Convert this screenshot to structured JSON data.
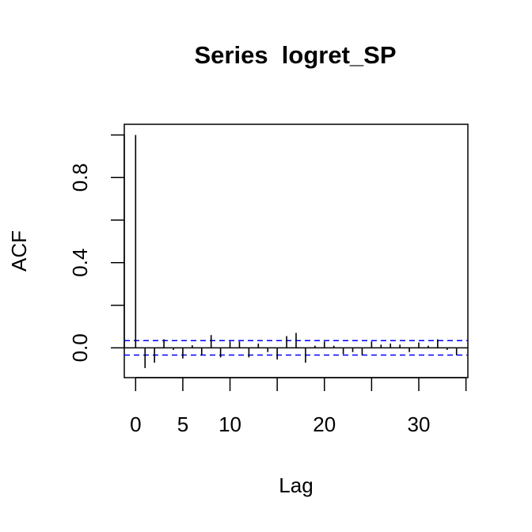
{
  "chart_data": {
    "type": "bar",
    "title": "Series  logret_SP",
    "xlabel": "Lag",
    "ylabel": "ACF",
    "xlim": [
      -1.2,
      35.2
    ],
    "ylim": [
      -0.14,
      1.05
    ],
    "x_ticks": [
      0,
      5,
      10,
      15,
      20,
      25,
      30,
      35
    ],
    "x_tick_labels": [
      "0",
      "5",
      "10",
      "",
      "20",
      "",
      "30",
      ""
    ],
    "y_ticks": [
      0.0,
      0.2,
      0.4,
      0.6,
      0.8,
      1.0
    ],
    "y_tick_labels": [
      "0.0",
      "",
      "0.4",
      "",
      "0.8",
      ""
    ],
    "confidence_bound": 0.034,
    "lags": [
      0,
      1,
      2,
      3,
      4,
      5,
      6,
      7,
      8,
      9,
      10,
      11,
      12,
      13,
      14,
      15,
      16,
      17,
      18,
      19,
      20,
      21,
      22,
      23,
      24,
      25,
      26,
      27,
      28,
      29,
      30,
      31,
      32,
      33,
      34
    ],
    "values": [
      1.0,
      -0.095,
      -0.07,
      0.04,
      -0.01,
      -0.05,
      0.012,
      -0.035,
      0.06,
      -0.045,
      0.03,
      0.03,
      -0.045,
      0.02,
      -0.02,
      -0.055,
      0.055,
      0.07,
      -0.07,
      0.01,
      0.03,
      0.01,
      -0.03,
      -0.02,
      -0.035,
      0.03,
      0.015,
      0.02,
      0.015,
      -0.02,
      0.025,
      0.01,
      0.04,
      -0.01,
      -0.035
    ],
    "bound_color": "#0000ff",
    "line_color": "#000000",
    "grid": false,
    "legend": "none"
  }
}
